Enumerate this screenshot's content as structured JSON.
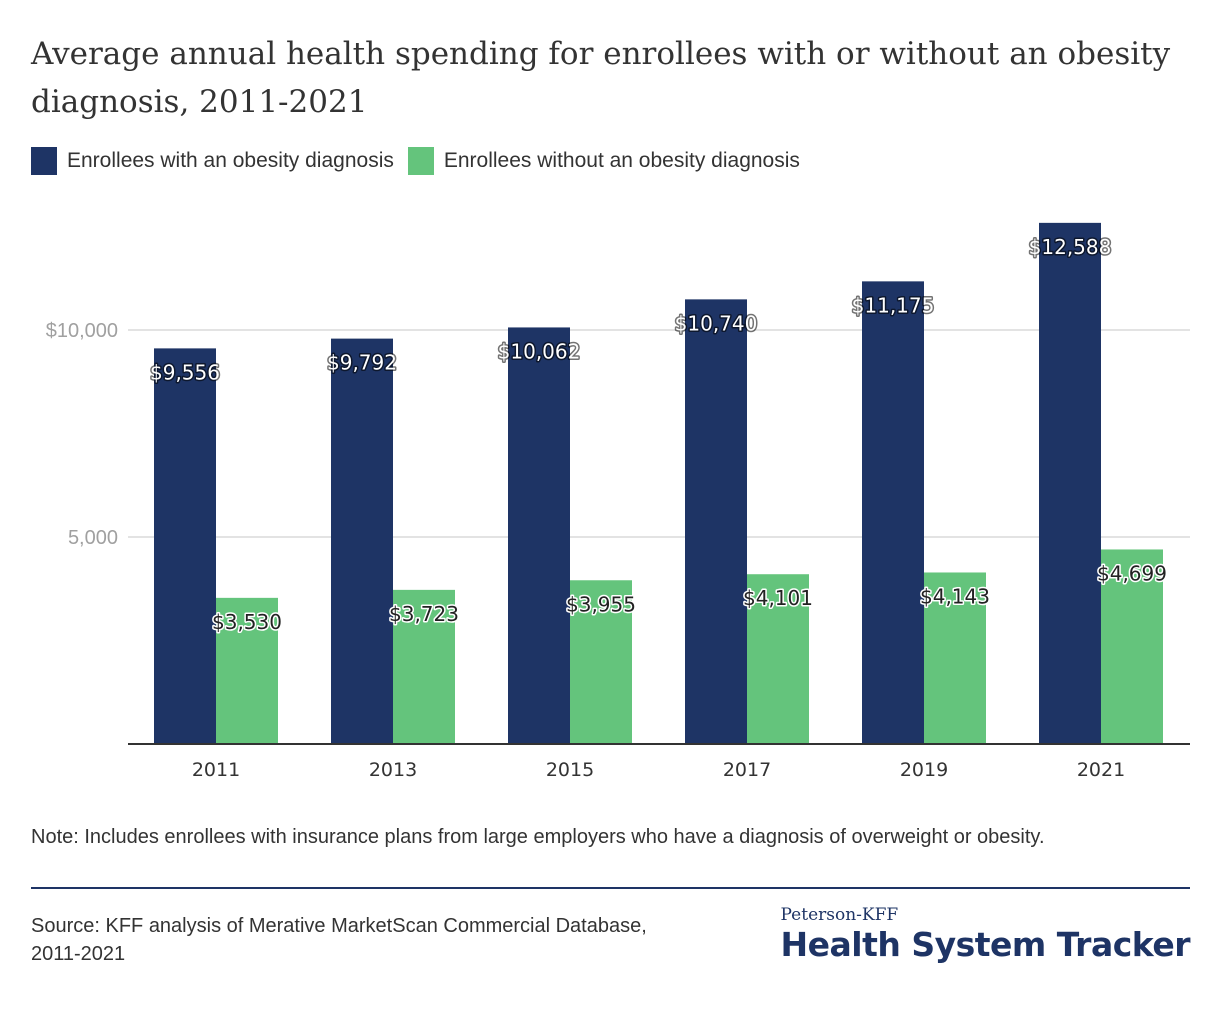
{
  "chart_data": {
    "type": "bar",
    "title": "Average annual health spending for enrollees with or without an obesity diagnosis, 2011-2021",
    "categories": [
      "2011",
      "2013",
      "2015",
      "2017",
      "2019",
      "2021"
    ],
    "series": [
      {
        "name": "Enrollees with an obesity diagnosis",
        "color": "#1e3465",
        "values": [
          9556,
          9792,
          10062,
          10740,
          11175,
          12588
        ],
        "labels": [
          "$9,556",
          "$9,792",
          "$10,062",
          "$10,740",
          "$11,175",
          "$12,588"
        ]
      },
      {
        "name": "Enrollees without an obesity diagnosis",
        "color": "#64c47c",
        "values": [
          3530,
          3723,
          3955,
          4101,
          4143,
          4699
        ],
        "labels": [
          "$3,530",
          "$3,723",
          "$3,955",
          "$4,101",
          "$4,143",
          "$4,699"
        ]
      }
    ],
    "yticks": [
      {
        "value": 10000,
        "label": "$10,000"
      },
      {
        "value": 5000,
        "label": "5,000"
      }
    ],
    "ylim": [
      0,
      13000
    ],
    "grid": true,
    "legend_placement": "top-left"
  },
  "note": "Note: Includes enrollees with insurance plans from large employers who have a diagnosis of overweight or obesity.",
  "source": "Source: KFF analysis of Merative MarketScan Commercial Database, 2011-2021",
  "logo": {
    "top": "Peterson-KFF",
    "bottom": "Health System Tracker"
  }
}
